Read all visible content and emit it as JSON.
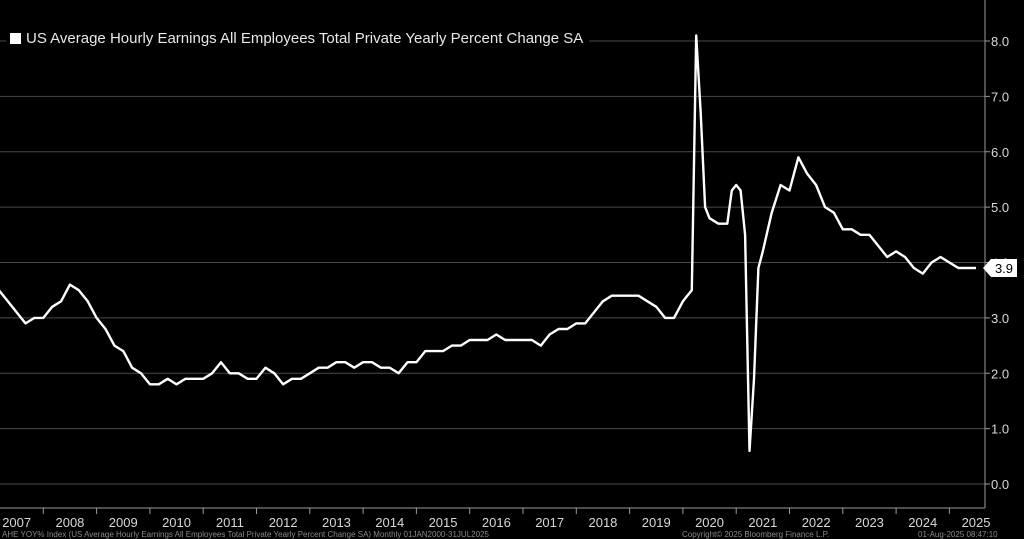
{
  "chart_data": {
    "type": "line",
    "title": "",
    "xlabel": "",
    "ylabel": "",
    "ylim": [
      0,
      8.5
    ],
    "y_ticks": [
      0.0,
      1.0,
      2.0,
      3.0,
      4.0,
      5.0,
      6.0,
      7.0,
      8.0
    ],
    "y_tick_labels": [
      "0.0",
      "1.0",
      "2.0",
      "3.0",
      "4.0",
      "5.0",
      "6.0",
      "7.0",
      "8.0"
    ],
    "x_tick_labels": [
      "2007",
      "2008",
      "2009",
      "2010",
      "2011",
      "2012",
      "2013",
      "2014",
      "2015",
      "2016",
      "2017",
      "2018",
      "2019",
      "2020",
      "2021",
      "2022",
      "2023",
      "2024",
      "2025"
    ],
    "grid": "horizontal",
    "legend": "top-left",
    "last_value_label": "3.9",
    "series": [
      {
        "name": "US Average Hourly Earnings All Employees Total Private Yearly Percent Change SA",
        "color": "#ffffff",
        "x": [
          "2007-01",
          "2007-03",
          "2007-05",
          "2007-07",
          "2007-09",
          "2007-11",
          "2008-01",
          "2008-03",
          "2008-05",
          "2008-07",
          "2008-09",
          "2008-11",
          "2009-01",
          "2009-03",
          "2009-05",
          "2009-07",
          "2009-09",
          "2009-11",
          "2010-01",
          "2010-03",
          "2010-05",
          "2010-07",
          "2010-09",
          "2010-11",
          "2011-01",
          "2011-03",
          "2011-05",
          "2011-07",
          "2011-09",
          "2011-11",
          "2012-01",
          "2012-03",
          "2012-05",
          "2012-07",
          "2012-09",
          "2012-11",
          "2013-01",
          "2013-03",
          "2013-05",
          "2013-07",
          "2013-09",
          "2013-11",
          "2014-01",
          "2014-03",
          "2014-05",
          "2014-07",
          "2014-09",
          "2014-11",
          "2015-01",
          "2015-03",
          "2015-05",
          "2015-07",
          "2015-09",
          "2015-11",
          "2016-01",
          "2016-03",
          "2016-05",
          "2016-07",
          "2016-09",
          "2016-11",
          "2017-01",
          "2017-03",
          "2017-05",
          "2017-07",
          "2017-09",
          "2017-11",
          "2018-01",
          "2018-03",
          "2018-05",
          "2018-07",
          "2018-09",
          "2018-11",
          "2019-01",
          "2019-03",
          "2019-05",
          "2019-07",
          "2019-09",
          "2019-11",
          "2020-01",
          "2020-02",
          "2020-03",
          "2020-04",
          "2020-05",
          "2020-06",
          "2020-07",
          "2020-09",
          "2020-11",
          "2020-12",
          "2021-01",
          "2021-02",
          "2021-03",
          "2021-04",
          "2021-05",
          "2021-06",
          "2021-07",
          "2021-09",
          "2021-11",
          "2022-01",
          "2022-02",
          "2022-03",
          "2022-05",
          "2022-07",
          "2022-09",
          "2022-11",
          "2023-01",
          "2023-03",
          "2023-05",
          "2023-07",
          "2023-09",
          "2023-11",
          "2024-01",
          "2024-03",
          "2024-05",
          "2024-07",
          "2024-09",
          "2024-11",
          "2025-01",
          "2025-03",
          "2025-05",
          "2025-07"
        ],
        "values": [
          3.2,
          3.5,
          3.3,
          3.1,
          2.9,
          3.0,
          3.0,
          3.2,
          3.3,
          3.6,
          3.5,
          3.3,
          3.0,
          2.8,
          2.5,
          2.4,
          2.1,
          2.0,
          1.8,
          1.8,
          1.9,
          1.8,
          1.9,
          1.9,
          1.9,
          2.0,
          2.2,
          2.0,
          2.0,
          1.9,
          1.9,
          2.1,
          2.0,
          1.8,
          1.9,
          1.9,
          2.0,
          2.1,
          2.1,
          2.2,
          2.2,
          2.1,
          2.2,
          2.2,
          2.1,
          2.1,
          2.0,
          2.2,
          2.2,
          2.4,
          2.4,
          2.4,
          2.5,
          2.5,
          2.6,
          2.6,
          2.6,
          2.7,
          2.6,
          2.6,
          2.6,
          2.6,
          2.5,
          2.7,
          2.8,
          2.8,
          2.9,
          2.9,
          3.1,
          3.3,
          3.4,
          3.4,
          3.4,
          3.4,
          3.3,
          3.2,
          3.0,
          3.0,
          3.3,
          3.4,
          3.5,
          8.1,
          6.7,
          5.0,
          4.8,
          4.7,
          4.7,
          5.3,
          5.4,
          5.3,
          4.5,
          0.6,
          1.9,
          3.9,
          4.2,
          4.9,
          5.4,
          5.3,
          5.6,
          5.9,
          5.6,
          5.4,
          5.0,
          4.9,
          4.6,
          4.6,
          4.5,
          4.5,
          4.3,
          4.1,
          4.2,
          4.1,
          3.9,
          3.8,
          4.0,
          4.1,
          4.0,
          3.9,
          3.9,
          3.9
        ]
      }
    ]
  },
  "footer": {
    "left": "AHE YOY% Index (US Average Hourly Earnings All Employees Total Private Yearly Percent Change SA)  Monthly 01JAN2000-31JUL2025",
    "center": "Copyright© 2025 Bloomberg Finance L.P.",
    "right": "01-Aug-2025 08:47:10"
  }
}
